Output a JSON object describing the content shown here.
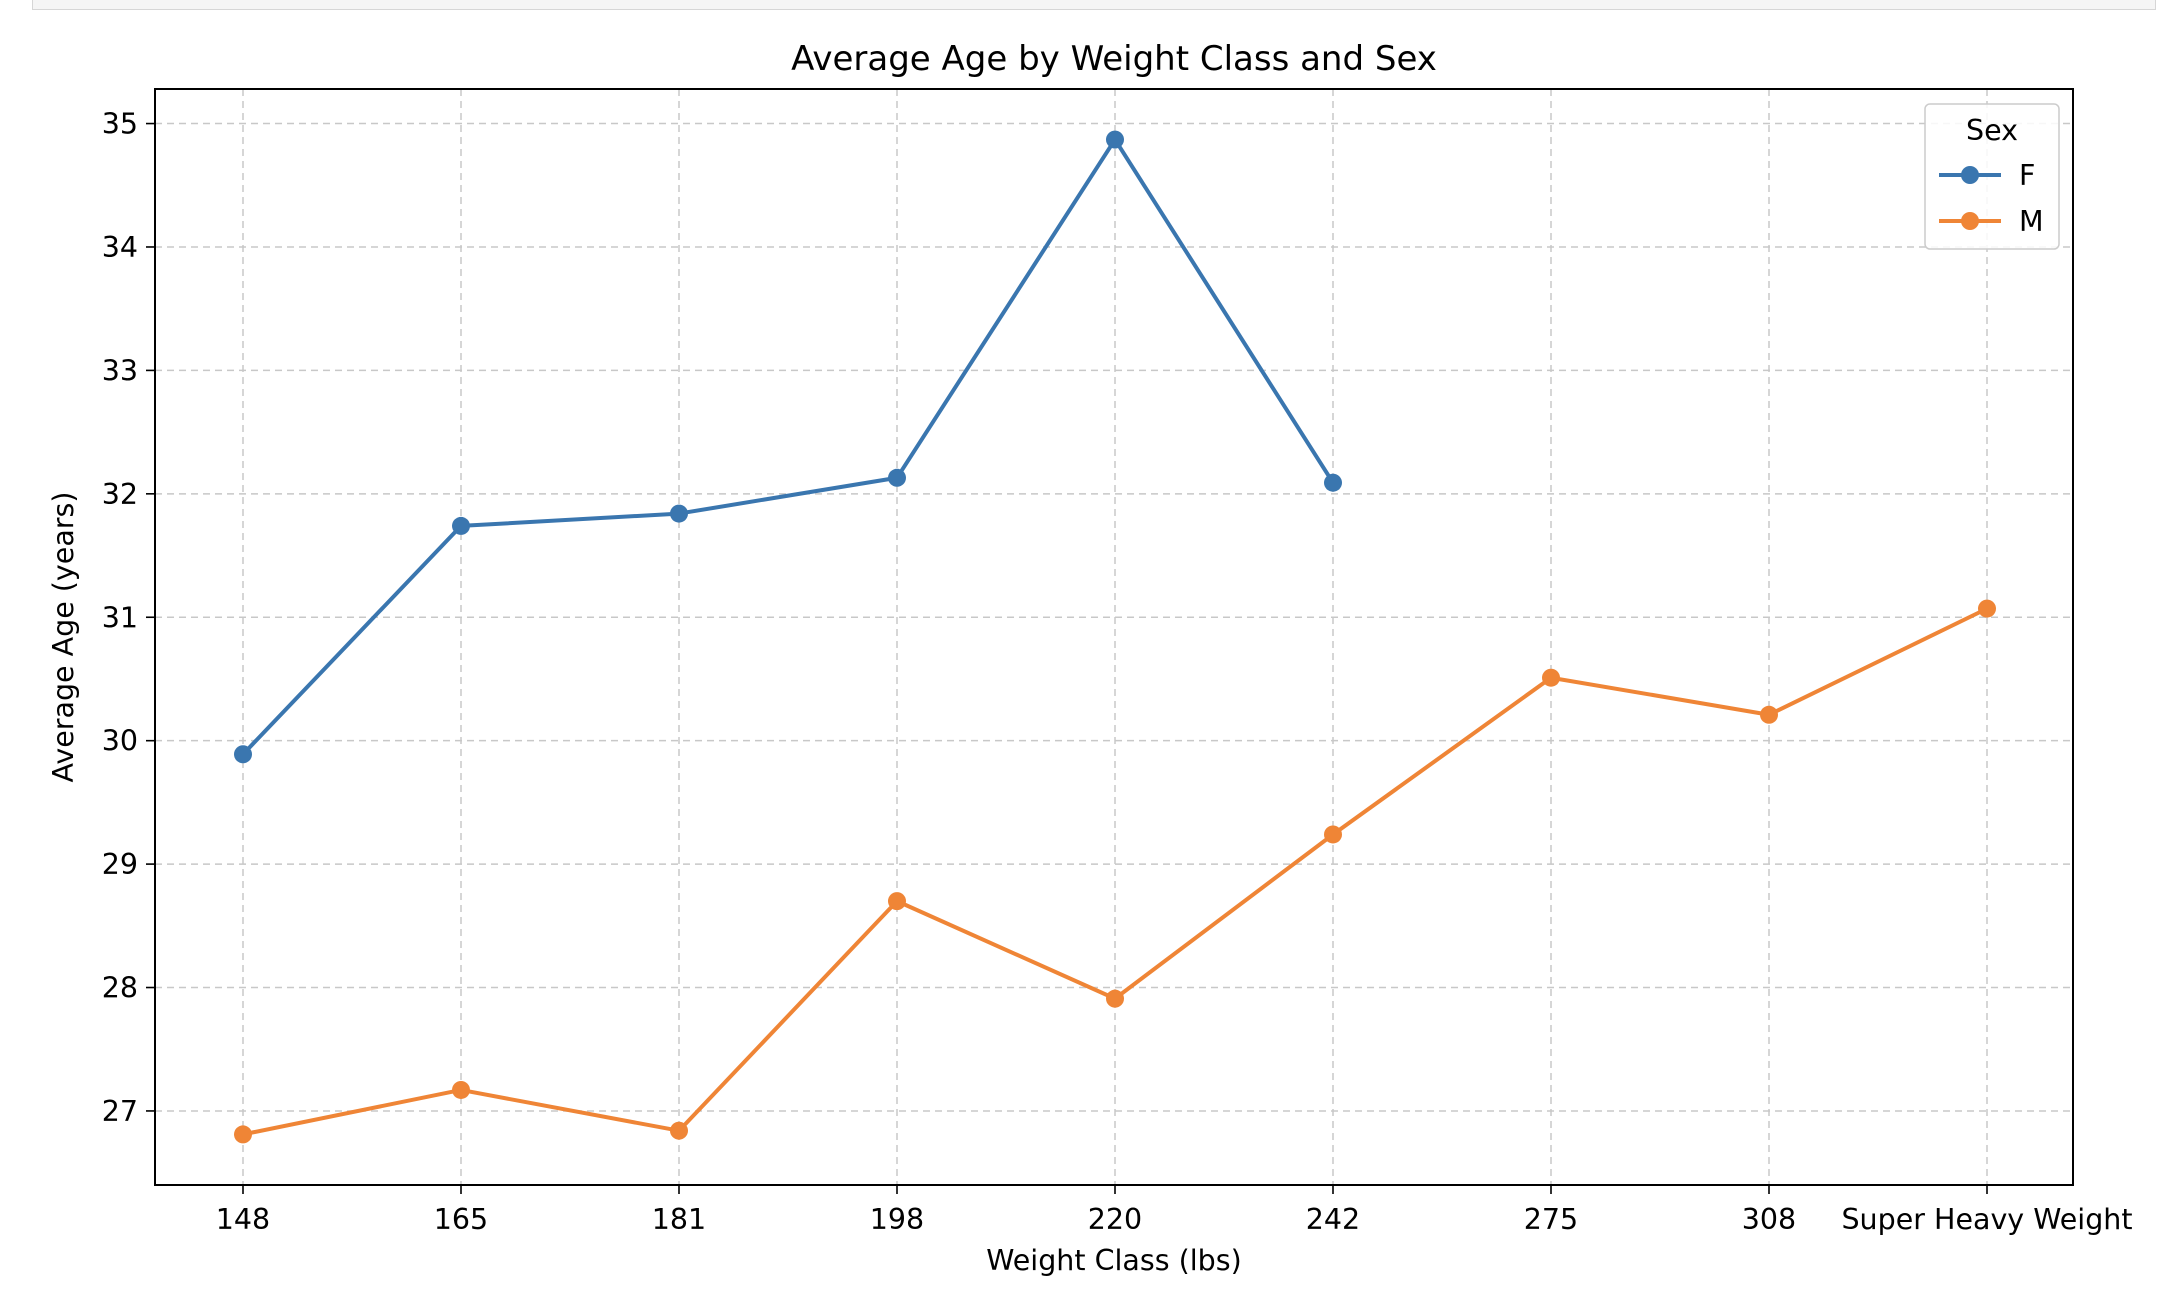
{
  "chart_data": {
    "type": "line",
    "title": "Average Age by Weight Class and Sex",
    "xlabel": "Weight Class (lbs)",
    "ylabel": "Average Age (years)",
    "categories": [
      "148",
      "165",
      "181",
      "198",
      "220",
      "242",
      "275",
      "308",
      "Super Heavy Weight"
    ],
    "ylim": [
      26.4,
      35.28
    ],
    "yticks": [
      27,
      28,
      29,
      30,
      31,
      32,
      33,
      34,
      35
    ],
    "grid": true,
    "legend": {
      "title": "Sex",
      "position": "top-right"
    },
    "series": [
      {
        "name": "F",
        "color": "#3a76af",
        "values": [
          29.89,
          31.74,
          31.84,
          32.13,
          34.87,
          32.09,
          null,
          null,
          null
        ]
      },
      {
        "name": "M",
        "color": "#ef8536",
        "values": [
          26.81,
          27.17,
          26.84,
          28.7,
          27.91,
          29.24,
          30.51,
          30.21,
          31.07
        ]
      }
    ]
  }
}
